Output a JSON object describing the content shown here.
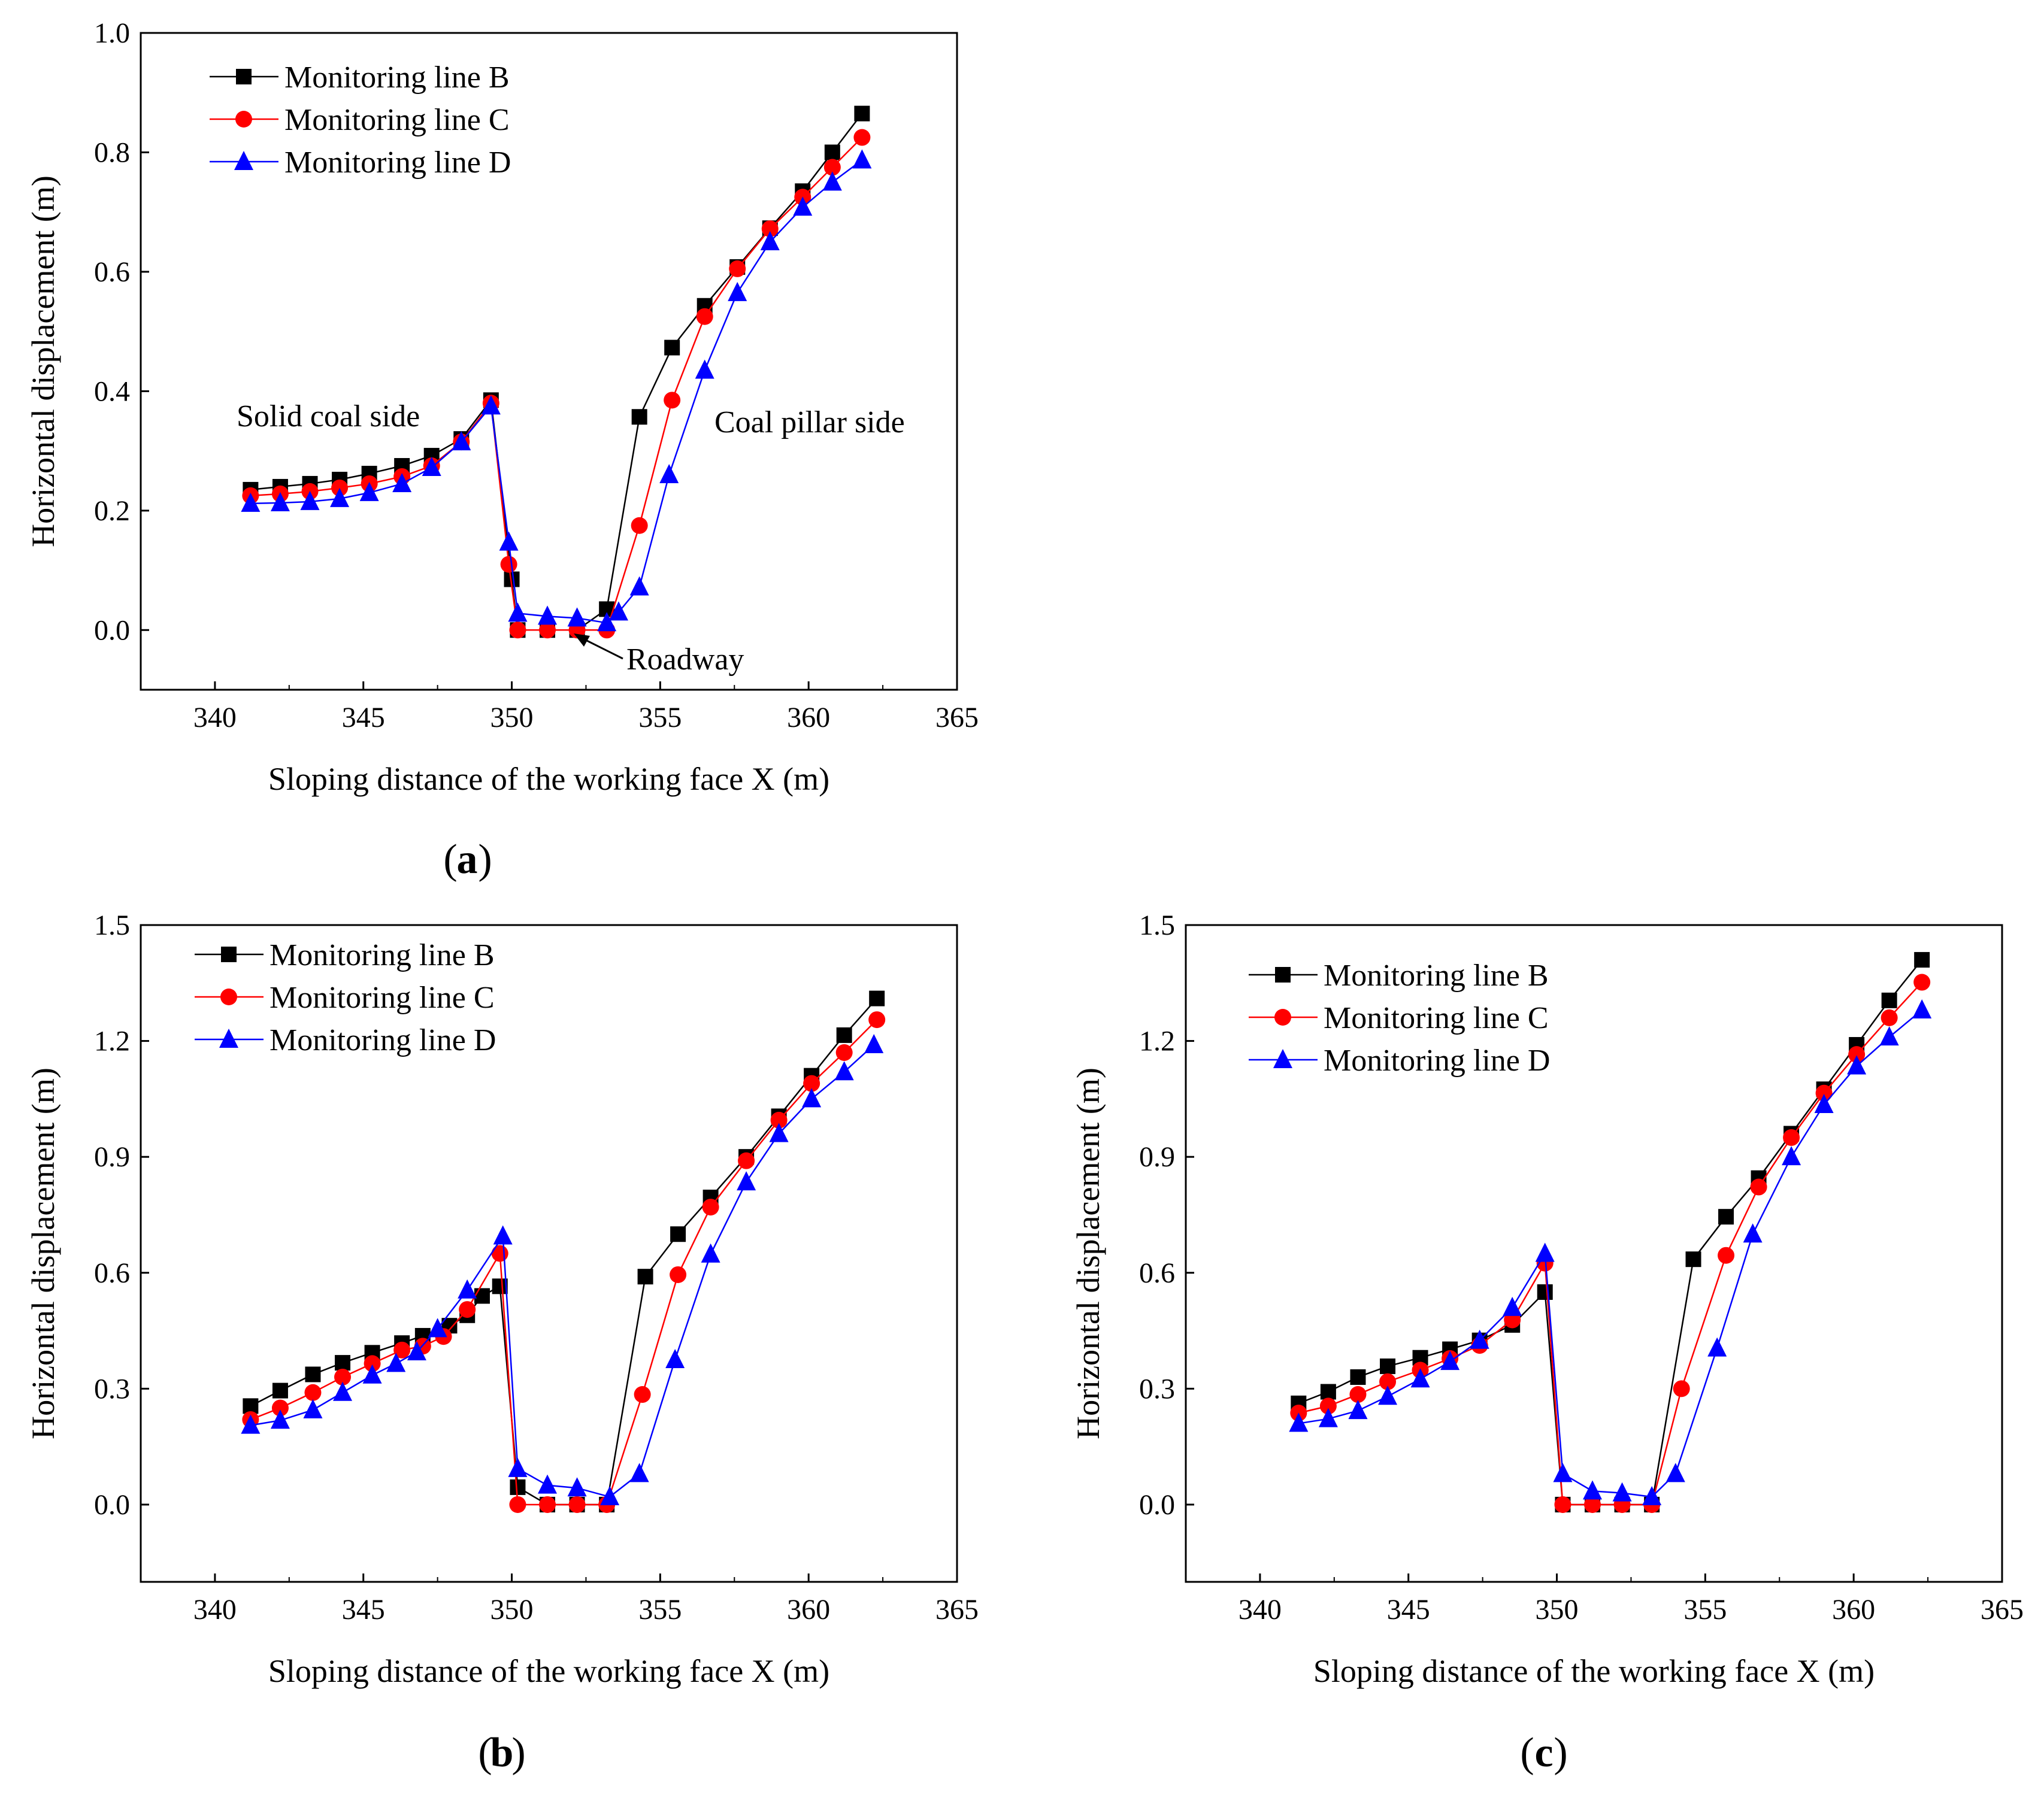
{
  "figure": {
    "label_b": "b",
    "label_c": "c"
  },
  "chart_data": [
    {
      "panel": "a",
      "type": "line",
      "xlabel": "Sloping distance of the working face X (m)",
      "ylabel": "Horizontal displacement (m)",
      "xlim": [
        337.5,
        365
      ],
      "ylim": [
        -0.1,
        1.0
      ],
      "xticks": [
        "340",
        "345",
        "350",
        "355",
        "360",
        "365"
      ],
      "yticks": [
        "0.0",
        "0.2",
        "0.4",
        "0.6",
        "0.8",
        "1.0"
      ],
      "legend_position": "top-left",
      "annotations": {
        "left": "Solid coal side",
        "right": "Coal pillar side",
        "roadway": "Roadway"
      },
      "series": [
        {
          "name": "Monitoring line B",
          "color": "#000000",
          "marker": "square",
          "x": [
            341.2,
            342.2,
            343.2,
            344.2,
            345.2,
            346.3,
            347.3,
            348.3,
            349.3,
            350.0,
            350.2,
            351.2,
            352.2,
            353.2,
            354.3,
            355.4,
            356.5,
            357.6,
            358.7,
            359.8,
            360.8,
            361.8
          ],
          "y": [
            0.235,
            0.24,
            0.245,
            0.252,
            0.262,
            0.275,
            0.292,
            0.32,
            0.385,
            0.085,
            0.0,
            0.0,
            0.0,
            0.035,
            0.357,
            0.473,
            0.543,
            0.608,
            0.673,
            0.735,
            0.8,
            0.865
          ]
        },
        {
          "name": "Monitoring line C",
          "color": "#ff0000",
          "marker": "circle",
          "x": [
            341.2,
            342.2,
            343.2,
            344.2,
            345.2,
            346.3,
            347.3,
            348.3,
            349.3,
            349.9,
            350.2,
            351.2,
            352.2,
            353.2,
            354.3,
            355.4,
            356.5,
            357.6,
            358.7,
            359.8,
            360.8,
            361.8
          ],
          "y": [
            0.225,
            0.228,
            0.232,
            0.238,
            0.245,
            0.257,
            0.275,
            0.315,
            0.38,
            0.11,
            0.0,
            0.0,
            0.0,
            0.0,
            0.175,
            0.385,
            0.525,
            0.605,
            0.672,
            0.725,
            0.775,
            0.825
          ]
        },
        {
          "name": "Monitoring line D",
          "color": "#0000ff",
          "marker": "triangle",
          "x": [
            341.2,
            342.2,
            343.2,
            344.2,
            345.2,
            346.3,
            347.3,
            348.3,
            349.3,
            349.9,
            350.2,
            351.2,
            352.2,
            353.2,
            353.6,
            354.3,
            355.3,
            356.5,
            357.6,
            358.7,
            359.8,
            360.8,
            361.8
          ],
          "y": [
            0.212,
            0.213,
            0.215,
            0.22,
            0.23,
            0.245,
            0.272,
            0.315,
            0.375,
            0.147,
            0.028,
            0.023,
            0.02,
            0.012,
            0.03,
            0.072,
            0.26,
            0.435,
            0.565,
            0.65,
            0.708,
            0.75,
            0.787
          ]
        }
      ]
    },
    {
      "panel": "b",
      "type": "line",
      "xlabel": "Sloping distance of the working face X (m)",
      "ylabel": "Horizontal displacement (m)",
      "xlim": [
        337.5,
        365
      ],
      "ylim": [
        -0.2,
        1.5
      ],
      "xticks": [
        "340",
        "345",
        "350",
        "355",
        "360",
        "365"
      ],
      "yticks": [
        "0.0",
        "0.3",
        "0.6",
        "0.9",
        "1.2",
        "1.5"
      ],
      "legend_position": "top-left",
      "series": [
        {
          "name": "Monitoring line B",
          "color": "#000000",
          "marker": "square",
          "x": [
            341.2,
            342.2,
            343.3,
            344.3,
            345.3,
            346.3,
            347.0,
            347.9,
            348.5,
            349.0,
            349.6,
            350.2,
            351.2,
            352.2,
            353.2,
            354.5,
            355.6,
            356.7,
            357.9,
            359.0,
            360.1,
            361.2,
            362.3
          ],
          "y": [
            0.255,
            0.295,
            0.337,
            0.367,
            0.393,
            0.418,
            0.437,
            0.463,
            0.49,
            0.54,
            0.565,
            0.045,
            0.0,
            0.0,
            0.0,
            0.59,
            0.7,
            0.795,
            0.9,
            1.005,
            1.11,
            1.215,
            1.31
          ]
        },
        {
          "name": "Monitoring line C",
          "color": "#ff0000",
          "marker": "circle",
          "x": [
            341.2,
            342.2,
            343.3,
            344.3,
            345.3,
            346.3,
            347.0,
            347.7,
            348.5,
            349.6,
            350.2,
            351.2,
            352.2,
            353.2,
            354.4,
            355.6,
            356.7,
            357.9,
            359.0,
            360.1,
            361.2,
            362.3
          ],
          "y": [
            0.22,
            0.25,
            0.29,
            0.33,
            0.365,
            0.4,
            0.41,
            0.435,
            0.505,
            0.65,
            0.0,
            0.0,
            0.0,
            0.0,
            0.285,
            0.595,
            0.77,
            0.89,
            0.995,
            1.09,
            1.17,
            1.255
          ]
        },
        {
          "name": "Monitoring line D",
          "color": "#0000ff",
          "marker": "triangle",
          "x": [
            341.2,
            342.2,
            343.3,
            344.3,
            345.3,
            346.1,
            346.8,
            347.5,
            348.5,
            349.7,
            350.2,
            351.2,
            352.2,
            353.3,
            354.3,
            355.5,
            356.7,
            357.9,
            359.0,
            360.1,
            361.2,
            362.2
          ],
          "y": [
            0.205,
            0.218,
            0.245,
            0.29,
            0.335,
            0.365,
            0.395,
            0.455,
            0.555,
            0.695,
            0.093,
            0.05,
            0.043,
            0.02,
            0.08,
            0.375,
            0.648,
            0.835,
            0.96,
            1.05,
            1.12,
            1.19
          ]
        }
      ]
    },
    {
      "panel": "c",
      "type": "line",
      "xlabel": "Sloping distance of the working face X (m)",
      "ylabel": "Horizontal displacement (m)",
      "xlim": [
        337.5,
        365
      ],
      "ylim": [
        -0.2,
        1.5
      ],
      "xticks": [
        "340",
        "345",
        "350",
        "355",
        "360",
        "365"
      ],
      "yticks": [
        "0.0",
        "0.3",
        "0.6",
        "0.9",
        "1.2",
        "1.5"
      ],
      "legend_position": "top-left",
      "series": [
        {
          "name": "Monitoring line B",
          "color": "#000000",
          "marker": "square",
          "x": [
            341.3,
            342.3,
            343.3,
            344.3,
            345.4,
            346.4,
            347.4,
            348.5,
            349.6,
            350.2,
            351.2,
            352.2,
            353.2,
            354.6,
            355.7,
            356.8,
            357.9,
            359.0,
            360.1,
            361.2,
            362.3
          ],
          "y": [
            0.262,
            0.292,
            0.33,
            0.358,
            0.38,
            0.402,
            0.425,
            0.465,
            0.55,
            0.0,
            0.0,
            0.0,
            0.0,
            0.635,
            0.745,
            0.845,
            0.96,
            1.075,
            1.19,
            1.305,
            1.41
          ]
        },
        {
          "name": "Monitoring line C",
          "color": "#ff0000",
          "marker": "circle",
          "x": [
            341.3,
            342.3,
            343.3,
            344.3,
            345.4,
            346.4,
            347.4,
            348.5,
            349.6,
            350.2,
            351.2,
            352.2,
            353.2,
            354.2,
            355.7,
            356.8,
            357.9,
            359.0,
            360.1,
            361.2,
            362.3
          ],
          "y": [
            0.237,
            0.255,
            0.285,
            0.318,
            0.348,
            0.378,
            0.412,
            0.478,
            0.625,
            0.0,
            0.0,
            0.0,
            0.0,
            0.3,
            0.645,
            0.822,
            0.95,
            1.065,
            1.165,
            1.26,
            1.352
          ]
        },
        {
          "name": "Monitoring line D",
          "color": "#0000ff",
          "marker": "triangle",
          "x": [
            341.3,
            342.3,
            343.3,
            344.3,
            345.4,
            346.4,
            347.4,
            348.5,
            349.6,
            350.2,
            351.2,
            352.2,
            353.2,
            354.0,
            355.4,
            356.6,
            357.9,
            359.0,
            360.1,
            361.2,
            362.3
          ],
          "y": [
            0.21,
            0.222,
            0.243,
            0.28,
            0.325,
            0.37,
            0.425,
            0.51,
            0.65,
            0.08,
            0.035,
            0.03,
            0.02,
            0.08,
            0.405,
            0.7,
            0.9,
            1.035,
            1.135,
            1.21,
            1.28
          ]
        }
      ]
    }
  ]
}
